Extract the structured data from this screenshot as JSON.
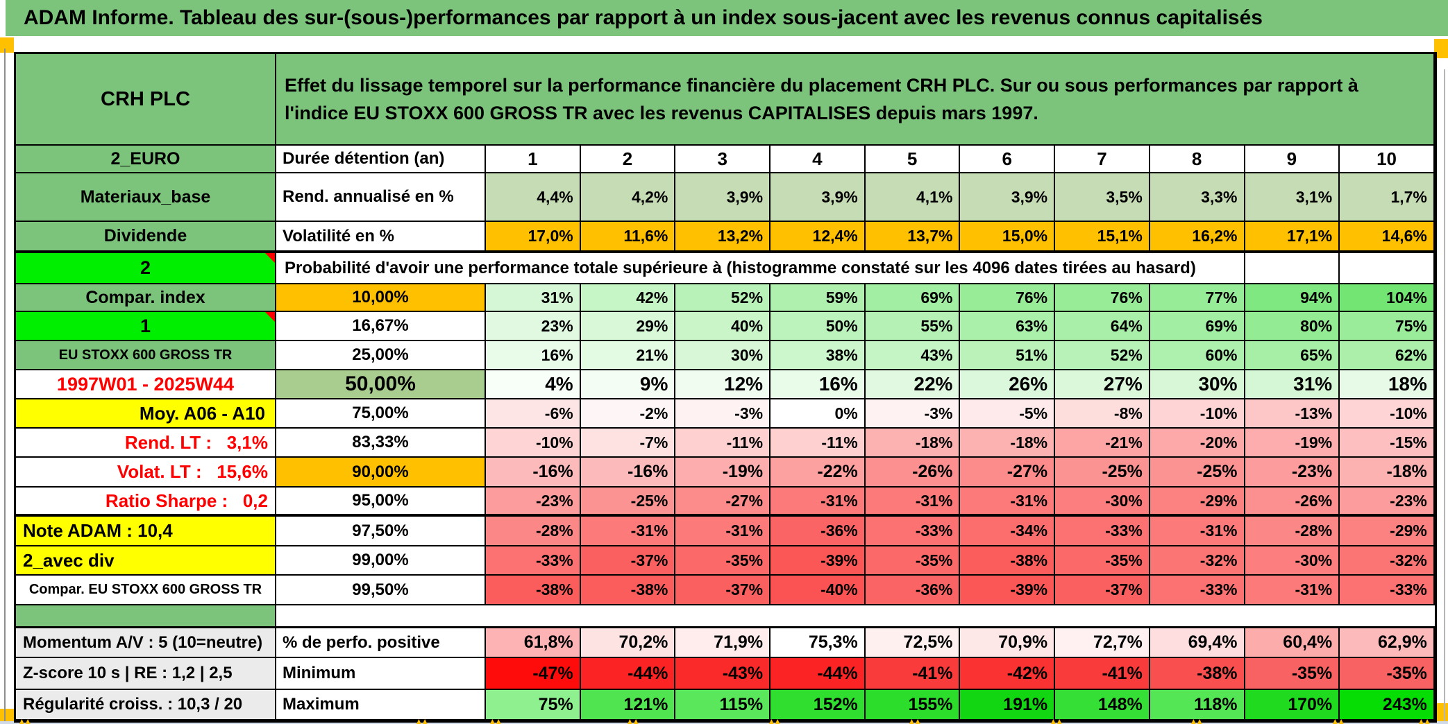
{
  "title": "ADAM Informe. Tableau des sur-(sous-)performances par rapport à un index sous-jacent avec les revenus connus capitalisés",
  "palette": {
    "header_green": "#7CC47C",
    "bright_green": "#00EE00",
    "orange": "#FFC000",
    "yellow": "#FFFF00",
    "olive_green": "#A9CD8E",
    "red_text": "#FF0000",
    "label_gray": "#EBEBEB"
  },
  "table": {
    "rows": [
      {
        "name": "header",
        "a": {
          "t": "CRH PLC",
          "cls": "aGreen aHdr"
        },
        "merge": {
          "t": "Effet du lissage temporel sur la performance financière du placement CRH PLC. Sur ou sous performances par rapport à l'indice EU STOXX 600 GROSS TR avec les revenus CAPITALISES depuis mars 1997.",
          "span": 11,
          "cls": "desc"
        }
      },
      {
        "name": "duree",
        "a": {
          "t": "2_EURO",
          "cls": "aGreen"
        },
        "b": {
          "t": "Durée détention (an)",
          "cls": "bL"
        },
        "cellCls": "hdrnum",
        "cells": [
          {
            "t": "1"
          },
          {
            "t": "2"
          },
          {
            "t": "3"
          },
          {
            "t": "4"
          },
          {
            "t": "5"
          },
          {
            "t": "6"
          },
          {
            "t": "7"
          },
          {
            "t": "8"
          },
          {
            "t": "9"
          },
          {
            "t": "10"
          }
        ]
      },
      {
        "name": "rend",
        "a": {
          "t": "Materiaux_base",
          "cls": "aGreen"
        },
        "b": {
          "t": "Rend. annualisé en %",
          "cls": "bL"
        },
        "cells": [
          {
            "t": "4,4%",
            "bg": "#C6DCB4"
          },
          {
            "t": "4,2%",
            "bg": "#C6DCB4"
          },
          {
            "t": "3,9%",
            "bg": "#C6DCB4"
          },
          {
            "t": "3,9%",
            "bg": "#C6DCB4"
          },
          {
            "t": "4,1%",
            "bg": "#C6DCB4"
          },
          {
            "t": "3,9%",
            "bg": "#C6DCB4"
          },
          {
            "t": "3,5%",
            "bg": "#C6DCB4"
          },
          {
            "t": "3,3%",
            "bg": "#C6DCB4"
          },
          {
            "t": "3,1%",
            "bg": "#C6DCB4"
          },
          {
            "t": "1,7%",
            "bg": "#C6DCB4"
          }
        ]
      },
      {
        "name": "volat",
        "a": {
          "t": "Dividende",
          "cls": "aGreen"
        },
        "b": {
          "t": "Volatilité en %",
          "cls": "bL"
        },
        "rowCls": "thickBot",
        "cells": [
          {
            "t": "17,0%",
            "bg": "#FFC000"
          },
          {
            "t": "11,6%",
            "bg": "#FFC000"
          },
          {
            "t": "13,2%",
            "bg": "#FFC000"
          },
          {
            "t": "12,4%",
            "bg": "#FFC000"
          },
          {
            "t": "13,7%",
            "bg": "#FFC000"
          },
          {
            "t": "15,0%",
            "bg": "#FFC000"
          },
          {
            "t": "15,1%",
            "bg": "#FFC000"
          },
          {
            "t": "16,2%",
            "bg": "#FFC000"
          },
          {
            "t": "17,1%",
            "bg": "#FFC000"
          },
          {
            "t": "14,6%",
            "bg": "#FFC000"
          }
        ]
      },
      {
        "name": "prob",
        "a": {
          "t": "2",
          "cls": "aBright",
          "tri": true
        },
        "merge": {
          "t": "Probabilité d'avoir une performance totale supérieure à (histogramme constaté sur les 4096 dates tirées au hasard)",
          "span": 9,
          "cls": "probTxt"
        },
        "tail": 2
      },
      {
        "name": "p10",
        "a": {
          "t": "Compar. index",
          "cls": "aGreen"
        },
        "b": {
          "t": "10,00%",
          "cls": "bPct bOr"
        },
        "cells": [
          {
            "t": "31%",
            "bg": "#D5F7D5"
          },
          {
            "t": "42%",
            "bg": "#C6F5C6"
          },
          {
            "t": "52%",
            "bg": "#B9F2B9"
          },
          {
            "t": "59%",
            "bg": "#AFF0AF"
          },
          {
            "t": "69%",
            "bg": "#A2EEA2"
          },
          {
            "t": "76%",
            "bg": "#98EC98"
          },
          {
            "t": "76%",
            "bg": "#98EC98"
          },
          {
            "t": "77%",
            "bg": "#97EC97"
          },
          {
            "t": "94%",
            "bg": "#80E880"
          },
          {
            "t": "104%",
            "bg": "#73E573"
          }
        ]
      },
      {
        "name": "p16",
        "a": {
          "t": "1",
          "cls": "aBright",
          "tri": true
        },
        "b": {
          "t": "16,67%",
          "cls": "bPct"
        },
        "cells": [
          {
            "t": "23%",
            "bg": "#E0F9E0"
          },
          {
            "t": "29%",
            "bg": "#D8F8D8"
          },
          {
            "t": "40%",
            "bg": "#C9F5C9"
          },
          {
            "t": "50%",
            "bg": "#BCF3BC"
          },
          {
            "t": "55%",
            "bg": "#B5F1B5"
          },
          {
            "t": "63%",
            "bg": "#AAEFAA"
          },
          {
            "t": "64%",
            "bg": "#A9EFA9"
          },
          {
            "t": "69%",
            "bg": "#A2EEA2"
          },
          {
            "t": "80%",
            "bg": "#93EB93"
          },
          {
            "t": "75%",
            "bg": "#9AEC9A"
          }
        ]
      },
      {
        "name": "p25",
        "a": {
          "t": "EU STOXX 600 GROSS TR",
          "cls": "aGreen aGreenSm"
        },
        "b": {
          "t": "25,00%",
          "cls": "bPct"
        },
        "cells": [
          {
            "t": "16%",
            "bg": "#E9FBE9"
          },
          {
            "t": "21%",
            "bg": "#E3FAE3"
          },
          {
            "t": "30%",
            "bg": "#D7F7D7"
          },
          {
            "t": "38%",
            "bg": "#CCF6CC"
          },
          {
            "t": "43%",
            "bg": "#C5F4C5"
          },
          {
            "t": "51%",
            "bg": "#BAF2BA"
          },
          {
            "t": "52%",
            "bg": "#B9F2B9"
          },
          {
            "t": "60%",
            "bg": "#AEF0AE"
          },
          {
            "t": "65%",
            "bg": "#A7EFA7"
          },
          {
            "t": "62%",
            "bg": "#ABEFAB"
          }
        ]
      },
      {
        "name": "p50",
        "a": {
          "t": "1997W01 - 2025W44",
          "cls": "aRedCtr"
        },
        "b": {
          "t": "50,00%",
          "cls": "bOlive"
        },
        "cellCls": "val big",
        "cells": [
          {
            "t": "4%",
            "bg": "#F8FEF8"
          },
          {
            "t": "9%",
            "bg": "#F3FDF3"
          },
          {
            "t": "12%",
            "bg": "#EFFCEF"
          },
          {
            "t": "16%",
            "bg": "#E9FBE9"
          },
          {
            "t": "22%",
            "bg": "#E1F9E1"
          },
          {
            "t": "26%",
            "bg": "#DCF8DC"
          },
          {
            "t": "27%",
            "bg": "#DBF8DB"
          },
          {
            "t": "30%",
            "bg": "#D7F7D7"
          },
          {
            "t": "31%",
            "bg": "#D5F7D5"
          },
          {
            "t": "18%",
            "bg": "#E7FAE7"
          }
        ]
      },
      {
        "name": "p75",
        "a": {
          "t": "Moy. A06 - A10",
          "cls": "aYelR"
        },
        "b": {
          "t": "75,00%",
          "cls": "bPct"
        },
        "cells": [
          {
            "t": "-6%",
            "bg": "#FEE5E5"
          },
          {
            "t": "-2%",
            "bg": "#FEF6F6"
          },
          {
            "t": "-3%",
            "bg": "#FEF2F2"
          },
          {
            "t": "0%",
            "bg": "#FFFFFF"
          },
          {
            "t": "-3%",
            "bg": "#FEF2F2"
          },
          {
            "t": "-5%",
            "bg": "#FEEAEA"
          },
          {
            "t": "-8%",
            "bg": "#FEDDDD"
          },
          {
            "t": "-10%",
            "bg": "#FED4D4"
          },
          {
            "t": "-13%",
            "bg": "#FEC7C7"
          },
          {
            "t": "-10%",
            "bg": "#FED4D4"
          }
        ]
      },
      {
        "name": "p83",
        "a": {
          "t": "Rend. LT :   3,1%",
          "cls": "aRedR"
        },
        "b": {
          "t": "83,33%",
          "cls": "bPct"
        },
        "cells": [
          {
            "t": "-10%",
            "bg": "#FED4D4"
          },
          {
            "t": "-7%",
            "bg": "#FEE1E1"
          },
          {
            "t": "-11%",
            "bg": "#FED0D0"
          },
          {
            "t": "-11%",
            "bg": "#FED0D0"
          },
          {
            "t": "-18%",
            "bg": "#FDB2B2"
          },
          {
            "t": "-18%",
            "bg": "#FDB2B2"
          },
          {
            "t": "-21%",
            "bg": "#FDA5A5"
          },
          {
            "t": "-20%",
            "bg": "#FDA9A9"
          },
          {
            "t": "-19%",
            "bg": "#FDADAD"
          },
          {
            "t": "-15%",
            "bg": "#FDBFBF"
          }
        ]
      },
      {
        "name": "p90",
        "a": {
          "t": "Volat. LT :   15,6%",
          "cls": "aRedR"
        },
        "b": {
          "t": "90,00%",
          "cls": "bPct bOr"
        },
        "cellCls": "val mid",
        "cells": [
          {
            "t": "-16%",
            "bg": "#FDBABA"
          },
          {
            "t": "-16%",
            "bg": "#FDBABA"
          },
          {
            "t": "-19%",
            "bg": "#FDADAD"
          },
          {
            "t": "-22%",
            "bg": "#FDA0A0"
          },
          {
            "t": "-26%",
            "bg": "#FC8F8F"
          },
          {
            "t": "-27%",
            "bg": "#FC8B8B"
          },
          {
            "t": "-25%",
            "bg": "#FC9393"
          },
          {
            "t": "-25%",
            "bg": "#FC9393"
          },
          {
            "t": "-23%",
            "bg": "#FD9C9C"
          },
          {
            "t": "-18%",
            "bg": "#FDB2B2"
          }
        ]
      },
      {
        "name": "p95",
        "a": {
          "t": "Ratio Sharpe :   0,2",
          "cls": "aRedR"
        },
        "b": {
          "t": "95,00%",
          "cls": "bPct"
        },
        "rowCls": "thickBot",
        "cells": [
          {
            "t": "-23%",
            "bg": "#FD9C9C"
          },
          {
            "t": "-25%",
            "bg": "#FC9393"
          },
          {
            "t": "-27%",
            "bg": "#FC8B8B"
          },
          {
            "t": "-31%",
            "bg": "#FC7A7A"
          },
          {
            "t": "-31%",
            "bg": "#FC7A7A"
          },
          {
            "t": "-31%",
            "bg": "#FC7A7A"
          },
          {
            "t": "-30%",
            "bg": "#FC7E7E"
          },
          {
            "t": "-29%",
            "bg": "#FC8282"
          },
          {
            "t": "-26%",
            "bg": "#FC8F8F"
          },
          {
            "t": "-23%",
            "bg": "#FD9C9C"
          }
        ]
      },
      {
        "name": "p97",
        "a": {
          "t": "Note ADAM : 10,4",
          "cls": "aYelL"
        },
        "b": {
          "t": "97,50%",
          "cls": "bPct"
        },
        "cells": [
          {
            "t": "-28%",
            "bg": "#FC8787"
          },
          {
            "t": "-31%",
            "bg": "#FC7A7A"
          },
          {
            "t": "-31%",
            "bg": "#FC7A7A"
          },
          {
            "t": "-36%",
            "bg": "#FB6464"
          },
          {
            "t": "-33%",
            "bg": "#FC7171"
          },
          {
            "t": "-34%",
            "bg": "#FC6D6D"
          },
          {
            "t": "-33%",
            "bg": "#FC7171"
          },
          {
            "t": "-31%",
            "bg": "#FC7A7A"
          },
          {
            "t": "-28%",
            "bg": "#FC8787"
          },
          {
            "t": "-29%",
            "bg": "#FC8282"
          }
        ]
      },
      {
        "name": "p99",
        "a": {
          "t": "2_avec div",
          "cls": "aYelL"
        },
        "b": {
          "t": "99,00%",
          "cls": "bPct"
        },
        "cells": [
          {
            "t": "-33%",
            "bg": "#FC7171"
          },
          {
            "t": "-37%",
            "bg": "#FB6060"
          },
          {
            "t": "-35%",
            "bg": "#FB6969"
          },
          {
            "t": "-39%",
            "bg": "#FB5757"
          },
          {
            "t": "-35%",
            "bg": "#FB6969"
          },
          {
            "t": "-38%",
            "bg": "#FB5C5C"
          },
          {
            "t": "-35%",
            "bg": "#FB6969"
          },
          {
            "t": "-32%",
            "bg": "#FC7575"
          },
          {
            "t": "-30%",
            "bg": "#FC7E7E"
          },
          {
            "t": "-32%",
            "bg": "#FC7575"
          }
        ]
      },
      {
        "name": "p995",
        "a": {
          "t": "Compar. EU STOXX 600 GROSS TR",
          "cls": "aWhiteSm"
        },
        "b": {
          "t": "99,50%",
          "cls": "bPct"
        },
        "cells": [
          {
            "t": "-38%",
            "bg": "#FB5C5C"
          },
          {
            "t": "-38%",
            "bg": "#FB5C5C"
          },
          {
            "t": "-37%",
            "bg": "#FB6060"
          },
          {
            "t": "-40%",
            "bg": "#FB5353"
          },
          {
            "t": "-36%",
            "bg": "#FB6464"
          },
          {
            "t": "-39%",
            "bg": "#FB5757"
          },
          {
            "t": "-37%",
            "bg": "#FB6060"
          },
          {
            "t": "-33%",
            "bg": "#FC7171"
          },
          {
            "t": "-31%",
            "bg": "#FC7A7A"
          },
          {
            "t": "-33%",
            "bg": "#FC7171"
          }
        ]
      },
      {
        "name": "sep",
        "a": {
          "t": "",
          "cls": "aSepG"
        },
        "merge": {
          "t": "",
          "span": 11,
          "cls": "sepBlank"
        }
      },
      {
        "name": "perfo",
        "a": {
          "t": "Momentum A/V : 5 (10=neutre)",
          "cls": "aGrayL"
        },
        "b": {
          "t": "% de perfo. positive",
          "cls": "bL"
        },
        "rowCls": "blockTop",
        "cellCls": "val mid",
        "cells": [
          {
            "t": "61,8%",
            "bg": "#FDB3B3"
          },
          {
            "t": "70,2%",
            "bg": "#FEE3E3"
          },
          {
            "t": "71,9%",
            "bg": "#FFECEC"
          },
          {
            "t": "75,3%",
            "bg": "#FFFFFF"
          },
          {
            "t": "72,5%",
            "bg": "#FFF0F0"
          },
          {
            "t": "70,9%",
            "bg": "#FEE7E7"
          },
          {
            "t": "72,7%",
            "bg": "#FFF1F1"
          },
          {
            "t": "69,4%",
            "bg": "#FEDEDE"
          },
          {
            "t": "60,4%",
            "bg": "#FDACAC"
          },
          {
            "t": "62,9%",
            "bg": "#FDBABA"
          }
        ]
      },
      {
        "name": "min",
        "a": {
          "t": "Z-score 10 s | RE : 1,2 | 2,5",
          "cls": "aGrayL"
        },
        "b": {
          "t": "Minimum",
          "cls": "bL"
        },
        "cellCls": "val mid",
        "cells": [
          {
            "t": "-47%",
            "bg": "#FE0C0C"
          },
          {
            "t": "-44%",
            "bg": "#FB2323"
          },
          {
            "t": "-43%",
            "bg": "#FB2A2A"
          },
          {
            "t": "-44%",
            "bg": "#FB2323"
          },
          {
            "t": "-41%",
            "bg": "#F93B3B"
          },
          {
            "t": "-42%",
            "bg": "#FA3232"
          },
          {
            "t": "-41%",
            "bg": "#F93B3B"
          },
          {
            "t": "-38%",
            "bg": "#F94F4F"
          },
          {
            "t": "-35%",
            "bg": "#F86262"
          },
          {
            "t": "-35%",
            "bg": "#F86262"
          }
        ]
      },
      {
        "name": "max",
        "a": {
          "t": "Régularité croiss. : 10,3 / 20",
          "cls": "aGrayL"
        },
        "b": {
          "t": "Maximum",
          "cls": "bL"
        },
        "cellCls": "val mid",
        "cells": [
          {
            "t": "75%",
            "bg": "#8FF08F"
          },
          {
            "t": "121%",
            "bg": "#50E550"
          },
          {
            "t": "115%",
            "bg": "#5BE75B"
          },
          {
            "t": "152%",
            "bg": "#30DE30"
          },
          {
            "t": "155%",
            "bg": "#2CDD2C"
          },
          {
            "t": "191%",
            "bg": "#12D612"
          },
          {
            "t": "148%",
            "bg": "#35DF35"
          },
          {
            "t": "118%",
            "bg": "#55E655"
          },
          {
            "t": "170%",
            "bg": "#20DA20"
          },
          {
            "t": "243%",
            "bg": "#05DD05"
          }
        ]
      }
    ]
  }
}
